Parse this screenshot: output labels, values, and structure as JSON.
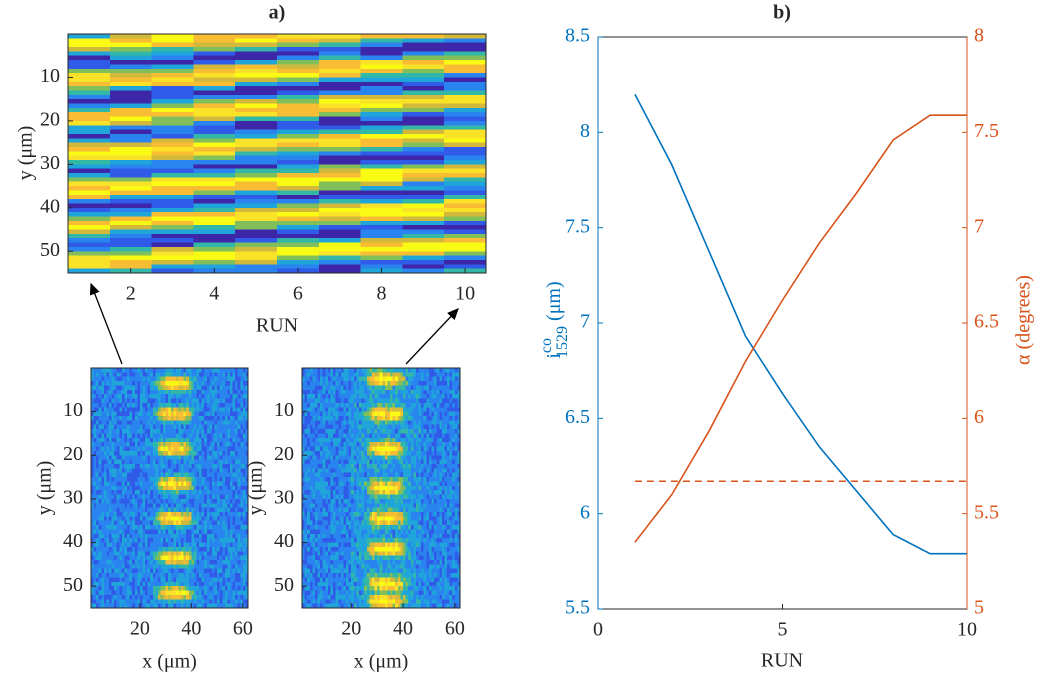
{
  "chart_data": [
    {
      "type": "heatmap",
      "title": "a)",
      "xlabel": "RUN",
      "ylabel": "y (μm)",
      "xlim": [
        0.5,
        10.5
      ],
      "ylim": [
        0,
        55
      ],
      "xticks": [
        2,
        4,
        6,
        8,
        10
      ],
      "yticks": [
        10,
        20,
        30,
        40,
        50
      ]
    },
    {
      "type": "image",
      "xlabel": "x (μm)",
      "ylabel": "y (μm)",
      "xlim": [
        1,
        62
      ],
      "ylim": [
        0,
        55
      ],
      "xticks": [
        20,
        40,
        60
      ],
      "yticks": [
        10,
        20,
        30,
        40,
        50
      ]
    },
    {
      "type": "image",
      "xlabel": "x (μm)",
      "ylabel": "y (μm)",
      "xlim": [
        1,
        62
      ],
      "ylim": [
        0,
        55
      ],
      "xticks": [
        20,
        40,
        60
      ],
      "yticks": [
        10,
        20,
        30,
        40,
        50
      ]
    },
    {
      "type": "line",
      "title": "b)",
      "xlabel": "RUN",
      "ylabel": {
        "base": "i",
        "sup": "co",
        "sub": "1529",
        "unit": "(μm)"
      },
      "y2label": "α (degrees)",
      "x": [
        1,
        2,
        3,
        4,
        5,
        6,
        7,
        8,
        9,
        10
      ],
      "xlim": [
        0,
        10
      ],
      "xticks": [
        0,
        5,
        10
      ],
      "ylim": [
        5.5,
        8.5
      ],
      "yticks": [
        5.5,
        6,
        6.5,
        7,
        7.5,
        8,
        8.5
      ],
      "y2lim": [
        5,
        8
      ],
      "y2ticks": [
        5,
        5.5,
        6,
        6.5,
        7,
        7.5,
        8
      ],
      "series": [
        {
          "color": "#0072bd",
          "values": [
            8.2,
            7.83,
            7.38,
            6.93,
            6.63,
            6.35,
            6.12,
            5.89,
            5.79,
            5.79
          ]
        },
        {
          "color": "#d95319",
          "axis": "y2",
          "values": [
            5.35,
            5.6,
            5.93,
            6.3,
            6.62,
            6.92,
            7.18,
            7.46,
            7.59,
            7.59
          ]
        },
        {
          "color": "#d95319",
          "axis": "y2",
          "dashed": true,
          "values": [
            5.67,
            5.67,
            5.67,
            5.67,
            5.67,
            5.67,
            5.67,
            5.67,
            5.67,
            5.67
          ]
        }
      ]
    }
  ]
}
